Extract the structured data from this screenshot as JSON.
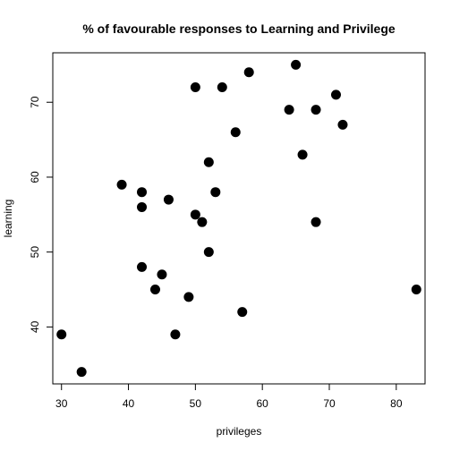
{
  "chart_data": {
    "type": "scatter",
    "title": "% of favourable responses to Learning and Privilege",
    "xlabel": "privileges",
    "ylabel": "learning",
    "xlim": [
      28.7,
      84.3
    ],
    "ylim": [
      32.4,
      76.6
    ],
    "xticks": [
      30,
      40,
      50,
      60,
      70,
      80
    ],
    "yticks": [
      40,
      50,
      60,
      70
    ],
    "grid": false,
    "point_color": "#000000",
    "points": [
      {
        "x": 30,
        "y": 39
      },
      {
        "x": 33,
        "y": 34
      },
      {
        "x": 39,
        "y": 59
      },
      {
        "x": 42,
        "y": 58
      },
      {
        "x": 42,
        "y": 56
      },
      {
        "x": 42,
        "y": 48
      },
      {
        "x": 44,
        "y": 45
      },
      {
        "x": 45,
        "y": 47
      },
      {
        "x": 46,
        "y": 57
      },
      {
        "x": 47,
        "y": 39
      },
      {
        "x": 49,
        "y": 44
      },
      {
        "x": 50,
        "y": 72
      },
      {
        "x": 50,
        "y": 55
      },
      {
        "x": 51,
        "y": 54
      },
      {
        "x": 52,
        "y": 62
      },
      {
        "x": 52,
        "y": 50
      },
      {
        "x": 53,
        "y": 58
      },
      {
        "x": 54,
        "y": 72
      },
      {
        "x": 56,
        "y": 66
      },
      {
        "x": 57,
        "y": 42
      },
      {
        "x": 58,
        "y": 74
      },
      {
        "x": 64,
        "y": 69
      },
      {
        "x": 65,
        "y": 75
      },
      {
        "x": 66,
        "y": 63
      },
      {
        "x": 68,
        "y": 69
      },
      {
        "x": 68,
        "y": 54
      },
      {
        "x": 71,
        "y": 71
      },
      {
        "x": 72,
        "y": 67
      },
      {
        "x": 83,
        "y": 45
      }
    ]
  }
}
